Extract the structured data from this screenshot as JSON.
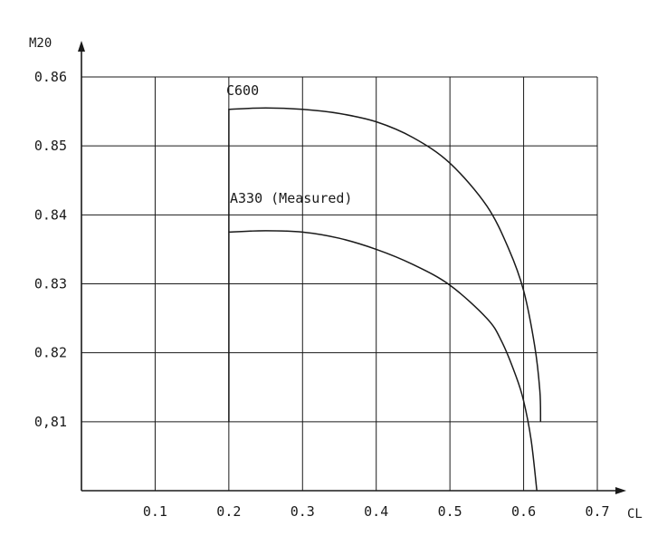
{
  "chart_data": {
    "type": "line",
    "xlabel": "CL",
    "ylabel": "M20",
    "xlim": [
      0.0,
      0.7
    ],
    "ylim": [
      0.8,
      0.86
    ],
    "grid": true,
    "x_ticks": [
      "0.1",
      "0.2",
      "0.3",
      "0.4",
      "0.5",
      "0.6",
      "0.7"
    ],
    "y_ticks": [
      "0.86",
      "0.85",
      "0.84",
      "0.83",
      "0.82",
      "0,81"
    ],
    "series": [
      {
        "name": "C600",
        "points": [
          [
            0.2,
            0.81
          ],
          [
            0.2,
            0.8553
          ],
          [
            0.25,
            0.8555
          ],
          [
            0.3,
            0.8553
          ],
          [
            0.35,
            0.8547
          ],
          [
            0.4,
            0.8535
          ],
          [
            0.45,
            0.8512
          ],
          [
            0.5,
            0.8475
          ],
          [
            0.55,
            0.8413
          ],
          [
            0.58,
            0.835
          ],
          [
            0.6,
            0.829
          ],
          [
            0.615,
            0.821
          ],
          [
            0.622,
            0.8145
          ],
          [
            0.623,
            0.81
          ]
        ]
      },
      {
        "name": "A330 (Measured)",
        "points": [
          [
            0.2,
            0.8375
          ],
          [
            0.25,
            0.8377
          ],
          [
            0.3,
            0.8375
          ],
          [
            0.35,
            0.8366
          ],
          [
            0.4,
            0.835
          ],
          [
            0.45,
            0.8328
          ],
          [
            0.5,
            0.8298
          ],
          [
            0.55,
            0.825
          ],
          [
            0.57,
            0.8217
          ],
          [
            0.59,
            0.8165
          ],
          [
            0.6,
            0.813
          ],
          [
            0.61,
            0.8075
          ],
          [
            0.618,
            0.8
          ]
        ]
      }
    ]
  },
  "colors": {
    "line": "#1a1a1a",
    "grid": "#1a1a1a",
    "background": "#ffffff"
  }
}
